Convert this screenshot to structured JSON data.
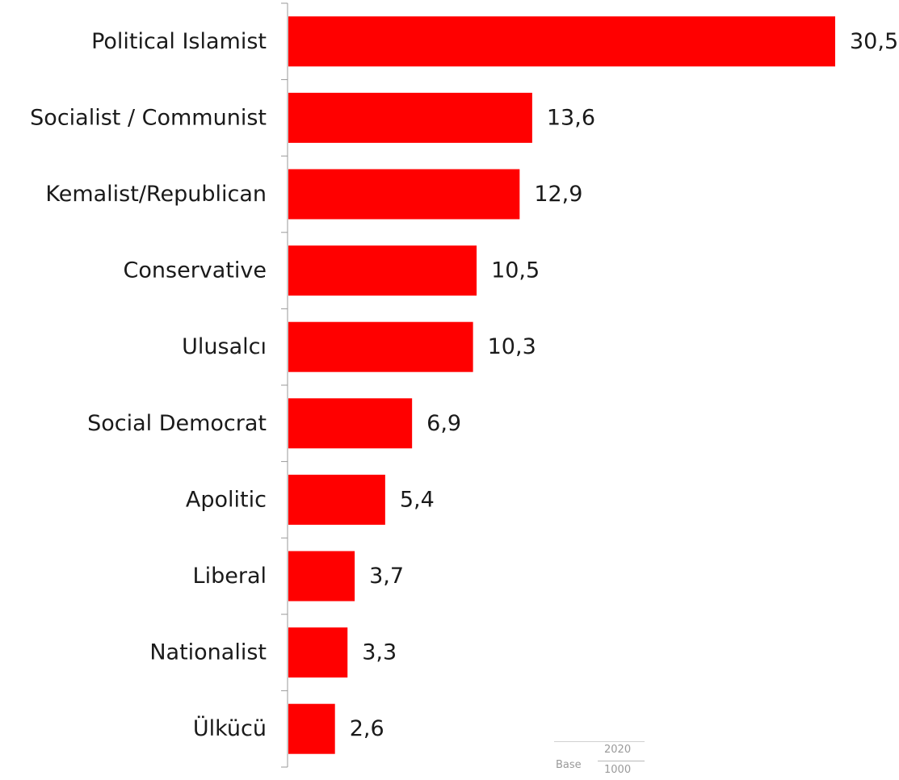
{
  "chart_data": {
    "type": "bar",
    "orientation": "horizontal",
    "categories": [
      "Political Islamist",
      "Socialist / Communist",
      "Kemalist/Republican",
      "Conservative",
      "Ulusalcı",
      "Social Democrat",
      "Apolitic",
      "Liberal",
      "Nationalist",
      "Ülkücü"
    ],
    "values": [
      30.5,
      13.6,
      12.9,
      10.5,
      10.3,
      6.9,
      5.4,
      3.7,
      3.3,
      2.6
    ],
    "value_labels": [
      "30,5",
      "13,6",
      "12,9",
      "10,5",
      "10,3",
      "6,9",
      "5,4",
      "3,7",
      "3,3",
      "2,6"
    ],
    "bar_color": "#ff0000",
    "xlim": [
      0,
      30.5
    ],
    "grid": false,
    "legend": "none"
  },
  "base_note": {
    "label": "Base",
    "year": "2020",
    "n": "1000"
  }
}
